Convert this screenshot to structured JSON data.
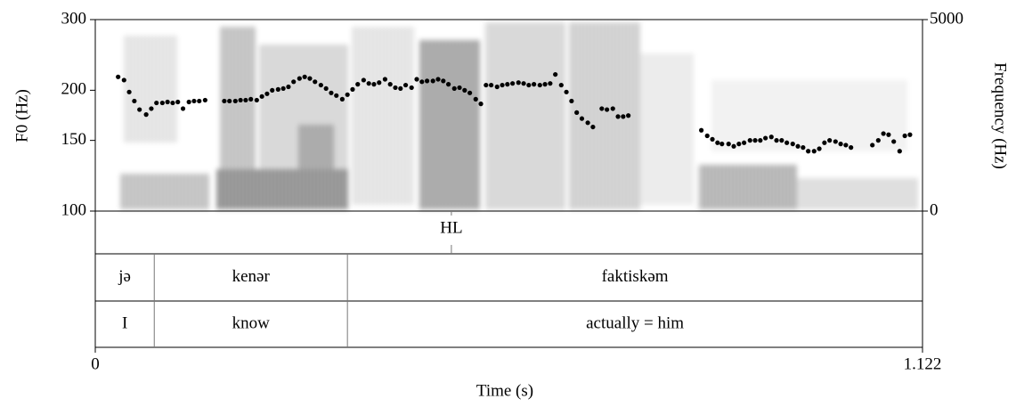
{
  "chart_data": {
    "type": "scatter",
    "x_label": "Time (s)",
    "y_label": "F0 (Hz)",
    "y2_label": "Frequency (Hz)",
    "xlim": [
      0,
      1.122
    ],
    "xticks": [
      0,
      1.122
    ],
    "ylim": [
      100,
      300
    ],
    "yticks": [
      100,
      150,
      200,
      300
    ],
    "y_scale": "log",
    "y2lim": [
      0,
      5000
    ],
    "y2ticks": [
      0,
      5000
    ],
    "color": "#000000",
    "x": [
      0.031,
      0.039,
      0.046,
      0.053,
      0.06,
      0.069,
      0.076,
      0.083,
      0.091,
      0.098,
      0.105,
      0.112,
      0.119,
      0.127,
      0.134,
      0.141,
      0.149,
      0.175,
      0.182,
      0.19,
      0.197,
      0.204,
      0.211,
      0.219,
      0.226,
      0.233,
      0.24,
      0.248,
      0.255,
      0.262,
      0.269,
      0.277,
      0.284,
      0.291,
      0.298,
      0.306,
      0.313,
      0.32,
      0.327,
      0.335,
      0.342,
      0.349,
      0.356,
      0.364,
      0.371,
      0.378,
      0.385,
      0.393,
      0.4,
      0.407,
      0.414,
      0.421,
      0.429,
      0.436,
      0.443,
      0.45,
      0.458,
      0.465,
      0.472,
      0.479,
      0.487,
      0.494,
      0.501,
      0.508,
      0.516,
      0.523,
      0.53,
      0.537,
      0.545,
      0.552,
      0.559,
      0.566,
      0.574,
      0.581,
      0.588,
      0.595,
      0.603,
      0.61,
      0.617,
      0.624,
      0.632,
      0.639,
      0.646,
      0.653,
      0.66,
      0.668,
      0.675,
      0.687,
      0.694,
      0.702,
      0.709,
      0.716,
      0.723,
      0.822,
      0.83,
      0.837,
      0.844,
      0.85,
      0.859,
      0.866,
      0.873,
      0.88,
      0.888,
      0.895,
      0.902,
      0.909,
      0.917,
      0.924,
      0.931,
      0.938,
      0.946,
      0.953,
      0.96,
      0.967,
      0.975,
      0.982,
      0.989,
      0.996,
      1.004,
      1.011,
      1.018,
      1.025,
      1.054,
      1.062,
      1.069,
      1.076,
      1.083,
      1.091,
      1.098,
      1.105
    ],
    "values": [
      216,
      212,
      198,
      188,
      179,
      174,
      180,
      186,
      186,
      187,
      186,
      187,
      180,
      187,
      188,
      188,
      189,
      188,
      188,
      188,
      189,
      189,
      190,
      189,
      193,
      196,
      200,
      201,
      202,
      204,
      210,
      214,
      216,
      214,
      210,
      206,
      202,
      197,
      194,
      190,
      195,
      201,
      207,
      212,
      208,
      207,
      209,
      213,
      207,
      203,
      202,
      206,
      203,
      213,
      210,
      211,
      211,
      213,
      211,
      207,
      202,
      203,
      200,
      197,
      190,
      185,
      206,
      206,
      204,
      206,
      207,
      208,
      209,
      208,
      206,
      207,
      206,
      207,
      208,
      219,
      206,
      198,
      188,
      176,
      170,
      166,
      162,
      180,
      179,
      180,
      172,
      172,
      173,
      159,
      154,
      151,
      148,
      147,
      147,
      145,
      147,
      148,
      150,
      150,
      150,
      152,
      153,
      150,
      150,
      148,
      147,
      145,
      144,
      141,
      141,
      143,
      148,
      150,
      149,
      147,
      146,
      144,
      146,
      150,
      156,
      155,
      149,
      141,
      154,
      155
    ],
    "tiers": [
      {
        "points": [
          0.483
        ],
        "labels": [
          "HL"
        ]
      },
      {
        "boundaries": [
          0.08,
          0.342
        ],
        "labels": [
          "jə",
          "kenər",
          "faktiskəm"
        ]
      },
      {
        "boundaries": [
          0.08,
          0.342
        ],
        "labels": [
          "I",
          "know",
          "actually = him"
        ]
      }
    ]
  }
}
